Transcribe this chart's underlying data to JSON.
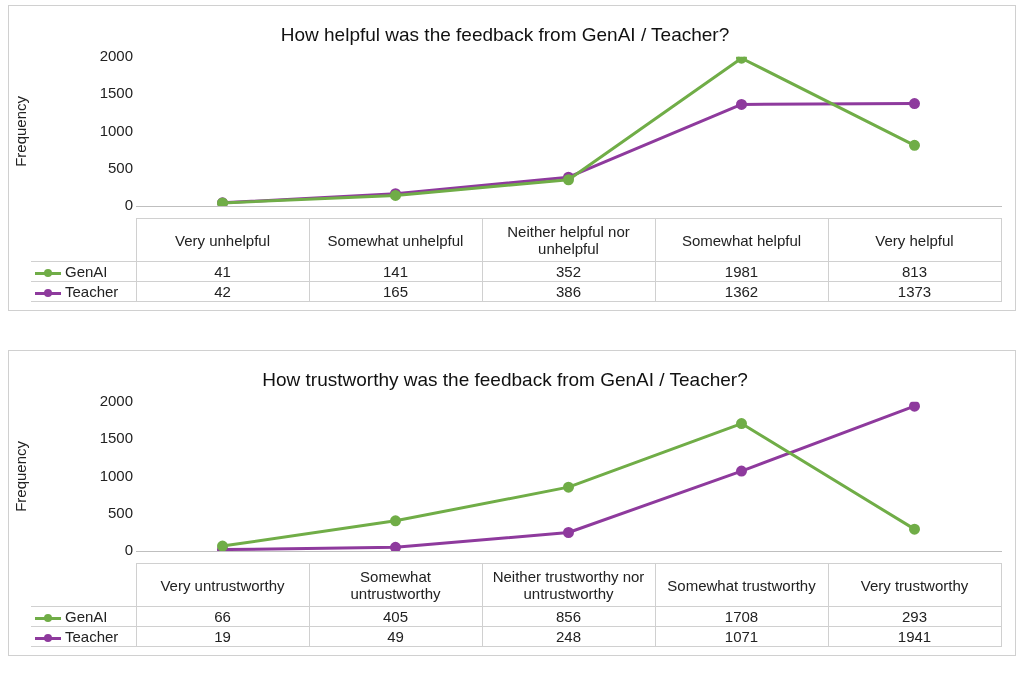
{
  "chart_data": [
    {
      "type": "line",
      "title": "How helpful was the feedback from GenAI / Teacher?",
      "ylabel": "Frequency",
      "categories": [
        "Very unhelpful",
        "Somewhat unhelpful",
        "Neither helpful nor unhelpful",
        "Somewhat helpful",
        "Very helpful"
      ],
      "series": [
        {
          "name": "GenAI",
          "color": "#70ad47",
          "values": [
            41,
            141,
            352,
            1981,
            813
          ]
        },
        {
          "name": "Teacher",
          "color": "#8e3a9d",
          "values": [
            42,
            165,
            386,
            1362,
            1373
          ]
        }
      ],
      "ylim": [
        0,
        2000
      ],
      "yticks": [
        0,
        500,
        1000,
        1500,
        2000
      ],
      "data_labels": true,
      "legend": "bottom left",
      "marker": "circle",
      "line_style": "solid"
    },
    {
      "type": "line",
      "title": "How trustworthy was the feedback from GenAI / Teacher?",
      "ylabel": "Frequency",
      "categories": [
        "Very untrustworthy",
        "Somewhat untrustworthy",
        "Neither trustworthy nor untrustworthy",
        "Somewhat trustworthy",
        "Very trustworthy"
      ],
      "series": [
        {
          "name": "GenAI",
          "color": "#70ad47",
          "values": [
            66,
            405,
            856,
            1708,
            293
          ]
        },
        {
          "name": "Teacher",
          "color": "#8e3a9d",
          "values": [
            19,
            49,
            248,
            1071,
            1941
          ]
        }
      ],
      "ylim": [
        0,
        2000
      ],
      "yticks": [
        0,
        500,
        1000,
        1500,
        2000
      ],
      "data_labels": true,
      "legend": "bottom left",
      "marker": "circle",
      "line_style": "solid"
    }
  ]
}
